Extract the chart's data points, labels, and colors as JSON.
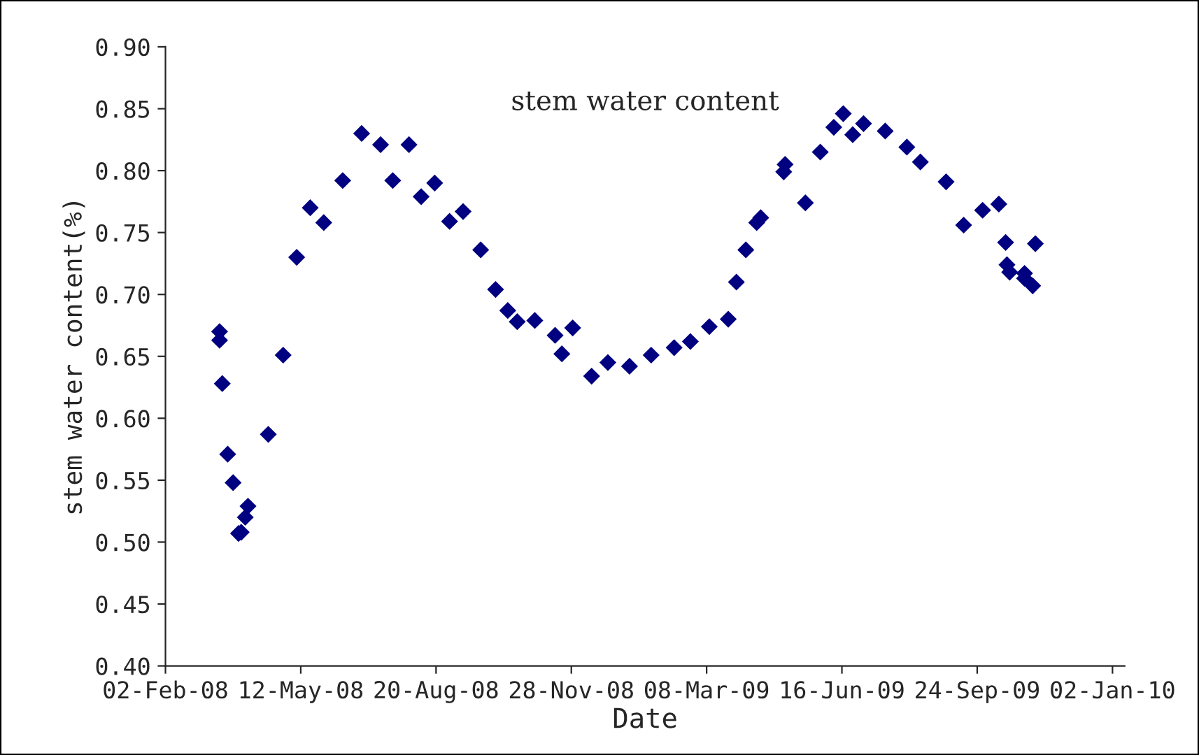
{
  "chart_data": {
    "type": "scatter",
    "title": "stem water content",
    "xlabel": "Date",
    "ylabel": "stem water content(%)",
    "x": [
      "2008-03-13",
      "2008-03-13",
      "2008-03-15",
      "2008-03-19",
      "2008-03-23",
      "2008-03-27",
      "2008-03-29",
      "2008-04-01",
      "2008-04-03",
      "2008-04-18",
      "2008-04-29",
      "2008-05-09",
      "2008-05-19",
      "2008-05-29",
      "2008-06-12",
      "2008-06-26",
      "2008-07-10",
      "2008-07-19",
      "2008-07-31",
      "2008-08-09",
      "2008-08-19",
      "2008-08-30",
      "2008-09-09",
      "2008-09-22",
      "2008-10-03",
      "2008-10-12",
      "2008-10-19",
      "2008-11-01",
      "2008-11-16",
      "2008-11-21",
      "2008-11-29",
      "2008-12-13",
      "2008-12-25",
      "2009-01-10",
      "2009-01-26",
      "2009-02-12",
      "2009-02-24",
      "2009-03-10",
      "2009-03-24",
      "2009-03-30",
      "2009-04-06",
      "2009-04-14",
      "2009-04-17",
      "2009-05-04",
      "2009-05-05",
      "2009-05-20",
      "2009-05-31",
      "2009-06-10",
      "2009-06-17",
      "2009-06-24",
      "2009-07-02",
      "2009-07-18",
      "2009-08-03",
      "2009-08-13",
      "2009-09-01",
      "2009-09-14",
      "2009-09-28",
      "2009-10-10",
      "2009-10-15",
      "2009-10-16",
      "2009-10-18",
      "2009-10-29",
      "2009-10-29",
      "2009-11-04",
      "2009-11-06"
    ],
    "series": [
      {
        "color": "#000080",
        "values": [
          0.67,
          0.663,
          0.628,
          0.571,
          0.548,
          0.507,
          0.508,
          0.52,
          0.529,
          0.587,
          0.651,
          0.73,
          0.77,
          0.758,
          0.792,
          0.83,
          0.821,
          0.792,
          0.821,
          0.779,
          0.79,
          0.759,
          0.767,
          0.736,
          0.704,
          0.687,
          0.678,
          0.679,
          0.667,
          0.652,
          0.673,
          0.634,
          0.645,
          0.642,
          0.651,
          0.657,
          0.662,
          0.674,
          0.68,
          0.71,
          0.736,
          0.758,
          0.762,
          0.799,
          0.805,
          0.774,
          0.815,
          0.835,
          0.846,
          0.829,
          0.838,
          0.832,
          0.819,
          0.807,
          0.791,
          0.756,
          0.768,
          0.773,
          0.742,
          0.724,
          0.718,
          0.717,
          0.713,
          0.707,
          0.741
        ]
      }
    ],
    "marker": "diamond",
    "xlim": [
      "2008-02-02",
      "2010-01-11"
    ],
    "xticks": [
      {
        "value": "2008-02-02",
        "label": "02-Feb-08"
      },
      {
        "value": "2008-05-12",
        "label": "12-May-08"
      },
      {
        "value": "2008-08-20",
        "label": "20-Aug-08"
      },
      {
        "value": "2008-11-28",
        "label": "28-Nov-08"
      },
      {
        "value": "2009-03-08",
        "label": "08-Mar-09"
      },
      {
        "value": "2009-06-16",
        "label": "16-Jun-09"
      },
      {
        "value": "2009-09-24",
        "label": "24-Sep-09"
      },
      {
        "value": "2010-01-02",
        "label": "02-Jan-10"
      }
    ],
    "ylim": [
      0.4,
      0.9
    ],
    "yticks": [
      {
        "value": 0.4,
        "label": "0.40"
      },
      {
        "value": 0.45,
        "label": "0.45"
      },
      {
        "value": 0.5,
        "label": "0.50"
      },
      {
        "value": 0.55,
        "label": "0.55"
      },
      {
        "value": 0.6,
        "label": "0.60"
      },
      {
        "value": 0.65,
        "label": "0.65"
      },
      {
        "value": 0.7,
        "label": "0.70"
      },
      {
        "value": 0.75,
        "label": "0.75"
      },
      {
        "value": 0.8,
        "label": "0.80"
      },
      {
        "value": 0.85,
        "label": "0.85"
      },
      {
        "value": 0.9,
        "label": "0.90"
      }
    ],
    "grid": false
  }
}
